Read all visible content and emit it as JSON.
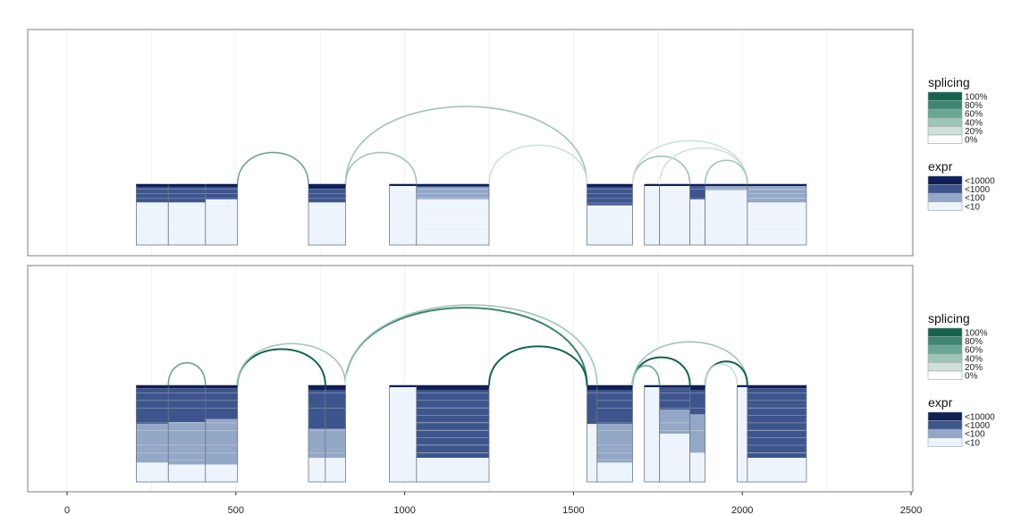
{
  "chart_data": {
    "type": "splicing-graph",
    "x_axis": {
      "ticks": [
        0,
        500,
        1000,
        1500,
        2000,
        2500
      ],
      "tick_labels": [
        "0",
        "500",
        "1000",
        "1500",
        "2000",
        "2500"
      ],
      "xlim": [
        0,
        2500
      ],
      "grid": true
    },
    "legends": {
      "splicing": {
        "title": "splicing",
        "labels": [
          "100%",
          "80%",
          "60%",
          "40%",
          "20%",
          "0%"
        ],
        "colors": [
          "#14634f",
          "#3d8670",
          "#6ba593",
          "#9fc4b8",
          "#cfe0da",
          "#ffffff"
        ]
      },
      "expr": {
        "title": "expr",
        "labels": [
          "<10000",
          "<1000",
          "<100",
          "<10"
        ],
        "colors": [
          "#0f1f57",
          "#3d558c",
          "#93a7c7",
          "#eef4fb"
        ]
      }
    },
    "exons": [
      [
        205,
        300
      ],
      [
        300,
        410
      ],
      [
        410,
        505
      ],
      [
        715,
        825
      ],
      [
        955,
        1035
      ],
      [
        1035,
        1250
      ],
      [
        1540,
        1675
      ],
      [
        1710,
        1755
      ],
      [
        1755,
        1845
      ],
      [
        1845,
        1890
      ],
      [
        1890,
        2015
      ],
      [
        2015,
        2190
      ]
    ],
    "panels": [
      {
        "exons": [
          {
            "start": 205,
            "end": 300,
            "bands": [
              [
                0.05,
                3
              ],
              [
                0.3,
                2
              ],
              [
                1,
                0
              ]
            ]
          },
          {
            "start": 300,
            "end": 410,
            "bands": [
              [
                0.05,
                3
              ],
              [
                0.3,
                2
              ],
              [
                1,
                0
              ]
            ]
          },
          {
            "start": 410,
            "end": 505,
            "bands": [
              [
                0.05,
                3
              ],
              [
                0.25,
                2
              ],
              [
                1,
                0
              ]
            ]
          },
          {
            "start": 715,
            "end": 825,
            "bands": [
              [
                0.08,
                3
              ],
              [
                0.3,
                2
              ],
              [
                1,
                0
              ]
            ]
          },
          {
            "start": 955,
            "end": 1035,
            "bands": [
              [
                0.03,
                1
              ],
              [
                1,
                0
              ]
            ]
          },
          {
            "start": 1035,
            "end": 1250,
            "bands": [
              [
                0.05,
                2
              ],
              [
                0.25,
                1
              ],
              [
                1,
                0
              ]
            ]
          },
          {
            "start": 1540,
            "end": 1675,
            "bands": [
              [
                0.05,
                3
              ],
              [
                0.35,
                2
              ],
              [
                1,
                0
              ]
            ]
          },
          {
            "start": 1710,
            "end": 1755,
            "bands": [
              [
                0.03,
                1
              ],
              [
                1,
                0
              ]
            ]
          },
          {
            "start": 1755,
            "end": 1845,
            "bands": [
              [
                0.02,
                1
              ],
              [
                1,
                0
              ]
            ]
          },
          {
            "start": 1845,
            "end": 1890,
            "bands": [
              [
                0.05,
                2
              ],
              [
                0.25,
                2
              ],
              [
                1,
                0
              ]
            ]
          },
          {
            "start": 1890,
            "end": 2015,
            "bands": [
              [
                0.05,
                1
              ],
              [
                0.1,
                1
              ],
              [
                1,
                0
              ]
            ]
          },
          {
            "start": 2015,
            "end": 2190,
            "bands": [
              [
                0.02,
                2
              ],
              [
                0.1,
                1
              ],
              [
                0.3,
                1
              ],
              [
                1,
                0
              ]
            ]
          }
        ],
        "junctions": [
          {
            "from": 300,
            "to": 410,
            "pct": 0.08
          },
          {
            "from": 505,
            "to": 715,
            "pct": 0.55
          },
          {
            "from": 825,
            "to": 1540,
            "pct": 0.5
          },
          {
            "from": 825,
            "to": 1035,
            "pct": 0.4
          },
          {
            "from": 1250,
            "to": 1540,
            "pct": 0.3
          },
          {
            "from": 1675,
            "to": 1845,
            "pct": 0.45
          },
          {
            "from": 1675,
            "to": 2015,
            "pct": 0.15
          },
          {
            "from": 1755,
            "to": 2015,
            "pct": 0.3
          },
          {
            "from": 1710,
            "to": 1755,
            "pct": 0.05
          },
          {
            "from": 1890,
            "to": 2015,
            "pct": 0.45
          }
        ]
      },
      {
        "exons": [
          {
            "start": 205,
            "end": 300,
            "bands": [
              [
                0.03,
                3
              ],
              [
                0.4,
                2
              ],
              [
                0.8,
                1
              ],
              [
                1,
                0
              ]
            ]
          },
          {
            "start": 300,
            "end": 410,
            "bands": [
              [
                0.03,
                3
              ],
              [
                0.38,
                2
              ],
              [
                0.82,
                1
              ],
              [
                1,
                0
              ]
            ]
          },
          {
            "start": 410,
            "end": 505,
            "bands": [
              [
                0.03,
                3
              ],
              [
                0.35,
                2
              ],
              [
                0.82,
                1
              ],
              [
                1,
                0
              ]
            ]
          },
          {
            "start": 715,
            "end": 765,
            "bands": [
              [
                0.05,
                3
              ],
              [
                0.45,
                2
              ],
              [
                0.75,
                1
              ],
              [
                1,
                0
              ]
            ]
          },
          {
            "start": 765,
            "end": 825,
            "bands": [
              [
                0.05,
                3
              ],
              [
                0.45,
                2
              ],
              [
                0.75,
                1
              ],
              [
                1,
                0
              ]
            ]
          },
          {
            "start": 955,
            "end": 1035,
            "bands": [
              [
                0.02,
                1
              ],
              [
                1,
                0
              ]
            ]
          },
          {
            "start": 1035,
            "end": 1250,
            "bands": [
              [
                0.05,
                3
              ],
              [
                0.75,
                2
              ],
              [
                1,
                0
              ]
            ]
          },
          {
            "start": 1540,
            "end": 1570,
            "bands": [
              [
                0.05,
                3
              ],
              [
                0.4,
                2
              ],
              [
                1,
                0
              ]
            ]
          },
          {
            "start": 1570,
            "end": 1675,
            "bands": [
              [
                0.05,
                3
              ],
              [
                0.4,
                2
              ],
              [
                0.8,
                1
              ],
              [
                1,
                0
              ]
            ]
          },
          {
            "start": 1710,
            "end": 1755,
            "bands": [
              [
                0.02,
                1
              ],
              [
                1,
                0
              ]
            ]
          },
          {
            "start": 1755,
            "end": 1845,
            "bands": [
              [
                0.05,
                2
              ],
              [
                0.25,
                2
              ],
              [
                0.5,
                1
              ],
              [
                1,
                0
              ]
            ]
          },
          {
            "start": 1845,
            "end": 1890,
            "bands": [
              [
                0.05,
                3
              ],
              [
                0.3,
                2
              ],
              [
                0.7,
                1
              ],
              [
                1,
                0
              ]
            ]
          },
          {
            "start": 1985,
            "end": 2015,
            "bands": [
              [
                0.02,
                1
              ],
              [
                1,
                0
              ]
            ]
          },
          {
            "start": 2015,
            "end": 2190,
            "bands": [
              [
                0.03,
                3
              ],
              [
                0.2,
                2
              ],
              [
                0.75,
                2
              ],
              [
                1,
                0
              ]
            ]
          }
        ],
        "junctions": [
          {
            "from": 300,
            "to": 410,
            "pct": 0.55
          },
          {
            "from": 505,
            "to": 765,
            "pct": 0.95
          },
          {
            "from": 505,
            "to": 825,
            "pct": 0.35
          },
          {
            "from": 825,
            "to": 1540,
            "pct": 0.85
          },
          {
            "from": 825,
            "to": 1570,
            "pct": 0.45
          },
          {
            "from": 825,
            "to": 955,
            "pct": 0.08
          },
          {
            "from": 1250,
            "to": 1540,
            "pct": 0.95
          },
          {
            "from": 1675,
            "to": 1845,
            "pct": 0.95
          },
          {
            "from": 1675,
            "to": 1755,
            "pct": 0.55
          },
          {
            "from": 1675,
            "to": 2015,
            "pct": 0.35
          },
          {
            "from": 1890,
            "to": 2015,
            "pct": 0.95
          },
          {
            "from": 1890,
            "to": 1985,
            "pct": 0.3
          }
        ]
      }
    ]
  }
}
